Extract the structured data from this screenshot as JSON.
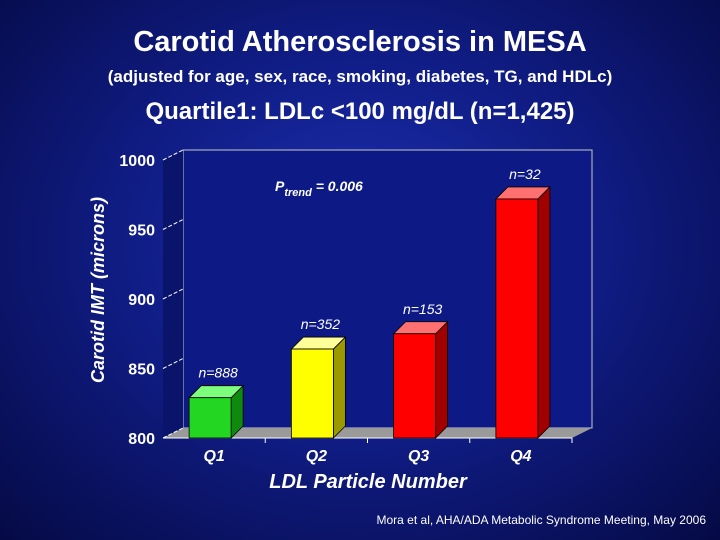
{
  "header": {
    "title": "Carotid Atherosclerosis in MESA",
    "subtitle": "(adjusted for age, sex, race, smoking, diabetes, TG, and HDLc)",
    "quartile_label": "Quartile1:  LDLc <100 mg/dL (n=1,425)"
  },
  "footer": {
    "source": "Mora et al, AHA/ADA Metabolic Syndrome Meeting, May 2006"
  },
  "chart_data": {
    "type": "bar",
    "categories": [
      "Q1",
      "Q2",
      "Q3",
      "Q4"
    ],
    "values": [
      829,
      864,
      875,
      972
    ],
    "bar_labels": [
      "n=888",
      "n=352",
      "n=153",
      "n=32"
    ],
    "bar_colors": [
      "#22d622",
      "#ffff00",
      "#ff0000",
      "#ff0000"
    ],
    "bar_side_colors": [
      "#0f8a0f",
      "#9a9a00",
      "#a00000",
      "#a00000"
    ],
    "bar_top_colors": [
      "#7dff7d",
      "#ffff99",
      "#ff7070",
      "#ff7070"
    ],
    "xlabel": "LDL Particle Number",
    "ylabel": "Carotid IMT (microns)",
    "ylim": [
      800,
      1000
    ],
    "yticks": [
      "800",
      "850",
      "900",
      "950",
      "1000"
    ],
    "annotation": {
      "p": "P",
      "sub": "trend",
      "rest": " = 0.006"
    },
    "grid": false,
    "plot_wall_color": "#0d1a85",
    "floor_color": "#9a9a9a"
  }
}
